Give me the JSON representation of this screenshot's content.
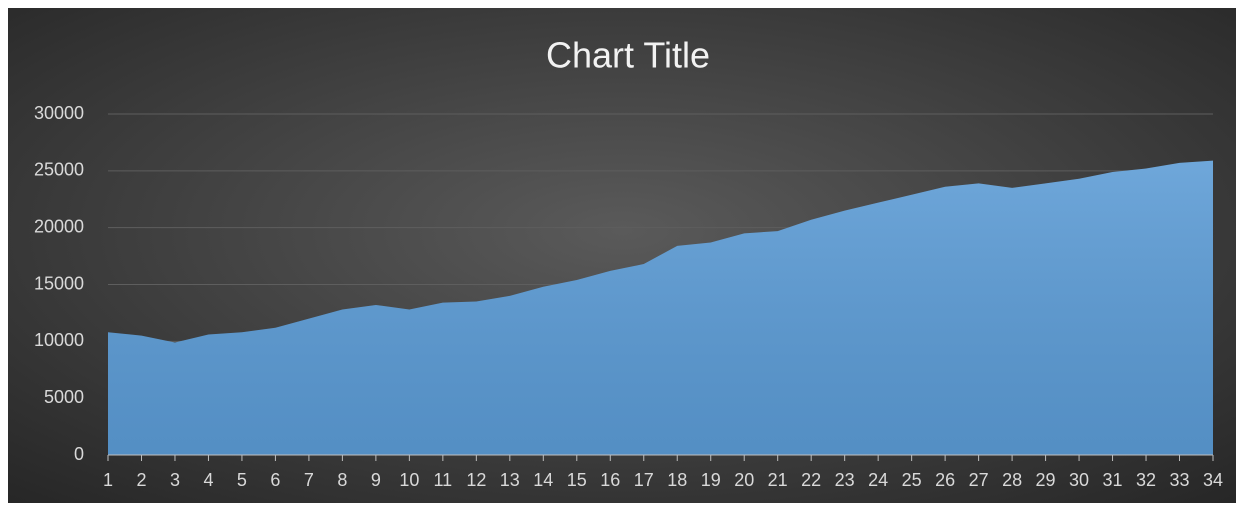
{
  "chart_data": {
    "type": "area",
    "title": "Chart Title",
    "categories": [
      "1",
      "2",
      "3",
      "4",
      "5",
      "6",
      "7",
      "8",
      "9",
      "10",
      "11",
      "12",
      "13",
      "14",
      "15",
      "16",
      "17",
      "18",
      "19",
      "20",
      "21",
      "22",
      "23",
      "24",
      "25",
      "26",
      "27",
      "28",
      "29",
      "30",
      "31",
      "32",
      "33",
      "34"
    ],
    "series": [
      {
        "color": "#5b9bd5",
        "values": [
          10800,
          10500,
          9900,
          10600,
          10800,
          11200,
          12000,
          12800,
          13200,
          12800,
          13400,
          13500,
          14000,
          14800,
          15400,
          16200,
          16800,
          18400,
          18700,
          19500,
          19700,
          20700,
          21500,
          22200,
          22900,
          23600,
          23900,
          23500,
          23900,
          24300,
          24900,
          25200,
          25700,
          25900
        ]
      }
    ],
    "ylim": [
      0,
      30000
    ],
    "yticks": [
      0,
      5000,
      10000,
      15000,
      20000,
      25000,
      30000
    ],
    "grid": true
  }
}
